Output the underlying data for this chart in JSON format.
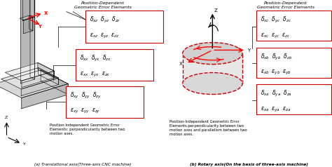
{
  "fig_width": 4.74,
  "fig_height": 2.38,
  "dpi": 100,
  "bg_color": "#ffffff",
  "title_a": "(a) Translational axis(Three-axis CNC machine)",
  "title_b": "(b) Rotary axis(On the basis of three-axis machine)",
  "pd_label_a": "Position-Dependent\nGeometric Error Elements",
  "pd_label_b": "Position-Dependent\nGeometric Error Elements",
  "pi_label_a": "Position-Independent Geometric Error\nElements: perpendicularity between two\nmotion axes.",
  "pi_label_b": "Position-Independent Geometric Error\nElements:perpendicularity between two\nmotion axes and parallelism between two\nmotion axes.",
  "box_color": "#cc0000",
  "gray1": "#c8c8c8",
  "gray2": "#e0e0e0",
  "gray3": "#b0b0b0",
  "gray4": "#d8d8d8",
  "red": "#cc0000",
  "black": "#000000"
}
